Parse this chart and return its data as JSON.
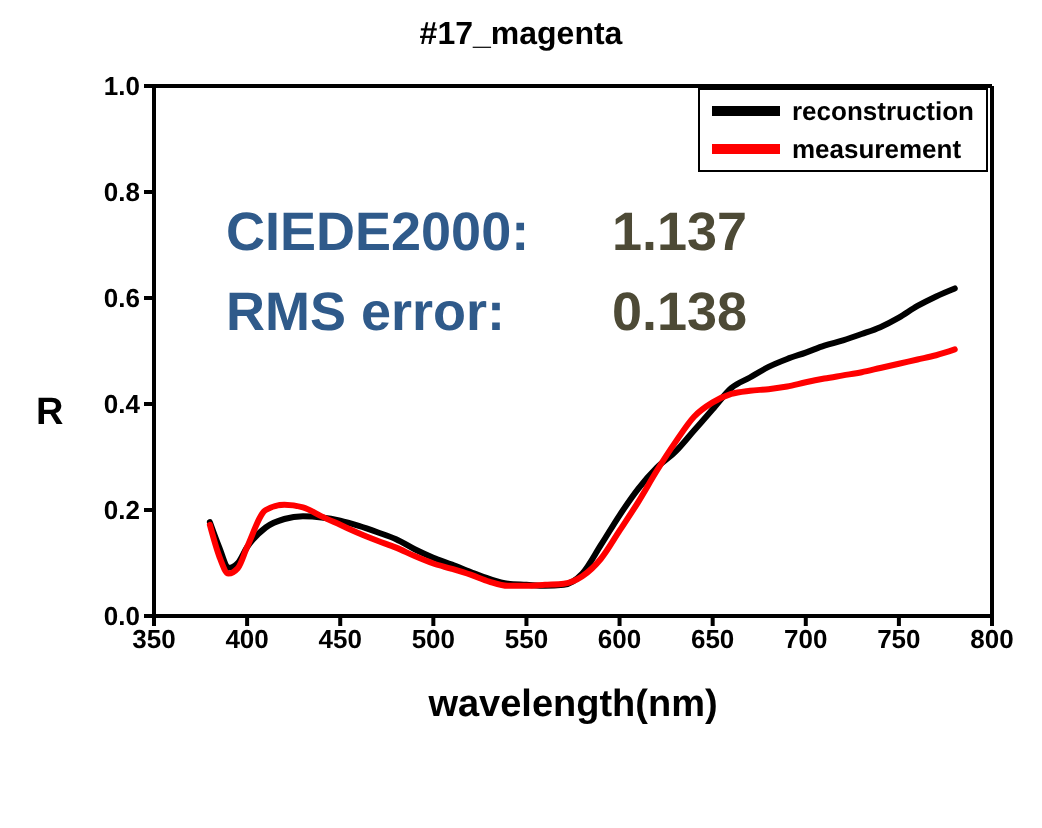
{
  "chart_data": {
    "type": "line",
    "title": "#17_magenta",
    "xlabel": "wavelength(nm)",
    "ylabel": "R",
    "annotations": [
      "CIEDE2000:",
      "1.137",
      "RMS error:",
      "0.138"
    ],
    "x": [
      380,
      385,
      390,
      395,
      400,
      410,
      420,
      430,
      440,
      450,
      460,
      470,
      480,
      490,
      500,
      510,
      520,
      530,
      540,
      550,
      560,
      570,
      580,
      590,
      600,
      610,
      620,
      630,
      640,
      650,
      660,
      670,
      680,
      690,
      700,
      710,
      720,
      730,
      740,
      750,
      760,
      770,
      780
    ],
    "series": [
      {
        "name": "reconstruction",
        "color": "#000000",
        "values": [
          0.177,
          0.13,
          0.091,
          0.1,
          0.13,
          0.167,
          0.183,
          0.188,
          0.186,
          0.18,
          0.17,
          0.158,
          0.145,
          0.126,
          0.11,
          0.097,
          0.083,
          0.07,
          0.061,
          0.059,
          0.057,
          0.059,
          0.08,
          0.134,
          0.19,
          0.24,
          0.28,
          0.31,
          0.35,
          0.39,
          0.43,
          0.45,
          0.47,
          0.485,
          0.497,
          0.51,
          0.52,
          0.532,
          0.545,
          0.563,
          0.585,
          0.603,
          0.618
        ]
      },
      {
        "name": "measurement",
        "color": "#ff0000",
        "values": [
          0.172,
          0.113,
          0.08,
          0.09,
          0.13,
          0.2,
          0.21,
          0.205,
          0.188,
          0.172,
          0.156,
          0.142,
          0.129,
          0.113,
          0.099,
          0.089,
          0.078,
          0.065,
          0.057,
          0.057,
          0.059,
          0.061,
          0.075,
          0.108,
          0.161,
          0.215,
          0.274,
          0.328,
          0.376,
          0.403,
          0.419,
          0.425,
          0.428,
          0.433,
          0.441,
          0.448,
          0.454,
          0.46,
          0.468,
          0.476,
          0.484,
          0.492,
          0.503
        ]
      }
    ],
    "xlim": [
      350,
      800
    ],
    "xticks": [
      350,
      400,
      450,
      500,
      550,
      600,
      650,
      700,
      750,
      800
    ],
    "ylim": [
      0,
      1
    ],
    "yticks": [
      {
        "value": 0,
        "label": "0.0"
      },
      {
        "value": 0.2,
        "label": "0.2"
      },
      {
        "value": 0.4,
        "label": "0.4"
      },
      {
        "value": 0.6,
        "label": "0.6"
      },
      {
        "value": 0.8,
        "label": "0.8"
      },
      {
        "value": 1,
        "label": "1.0"
      }
    ],
    "grid": false,
    "legend": "top right",
    "marker": "none",
    "line_style": "solid"
  }
}
